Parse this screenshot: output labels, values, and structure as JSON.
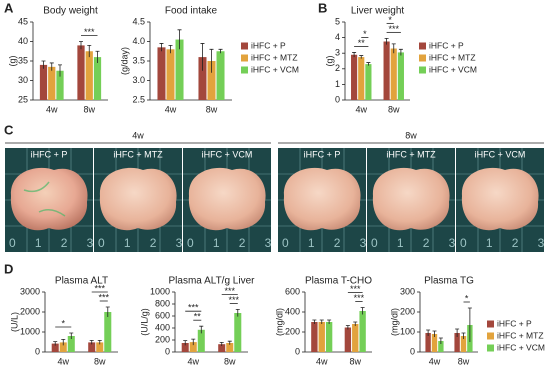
{
  "panel_labels": [
    "A",
    "B",
    "C",
    "D"
  ],
  "photos": {
    "groups": [
      {
        "label": "4w",
        "images": [
          "iHFC + P",
          "iHFC + MTZ",
          "iHFC + VCM"
        ]
      },
      {
        "label": "8w",
        "images": [
          "iHFC + P",
          "iHFC + MTZ",
          "iHFC + VCM"
        ]
      }
    ],
    "scale": [
      "0",
      "1",
      "2",
      "3"
    ]
  },
  "chart_data": [
    {
      "type": "bar",
      "title": "Body weight",
      "y_label": "(g)",
      "categories": [
        "4w",
        "8w"
      ],
      "series": [
        {
          "name": "iHFC + P",
          "color": "#a3473c",
          "values": [
            34,
            39
          ],
          "errors": [
            1,
            1
          ]
        },
        {
          "name": "iHFC + MTZ",
          "color": "#e2a33d",
          "values": [
            33.5,
            37.5
          ],
          "errors": [
            1,
            1.5
          ]
        },
        {
          "name": "iHFC + VCM",
          "color": "#74cf57",
          "values": [
            32.5,
            36
          ],
          "errors": [
            1.5,
            1.5
          ]
        }
      ],
      "ylim": [
        25,
        45
      ],
      "yticks": [
        25,
        30,
        35,
        40,
        45
      ],
      "annotations": [
        {
          "text": "***",
          "category": "8w",
          "between": [
            "iHFC + P",
            "iHFC + VCM"
          ]
        }
      ]
    },
    {
      "type": "bar",
      "title": "Food intake",
      "y_label": "(g/day)",
      "categories": [
        "4w",
        "8w"
      ],
      "series": [
        {
          "name": "iHFC + P",
          "color": "#a3473c",
          "values": [
            3.85,
            3.6
          ],
          "errors": [
            0.1,
            0.35
          ]
        },
        {
          "name": "iHFC + MTZ",
          "color": "#e2a33d",
          "values": [
            3.8,
            3.5
          ],
          "errors": [
            0.1,
            0.3
          ]
        },
        {
          "name": "iHFC + VCM",
          "color": "#74cf57",
          "values": [
            4.05,
            3.75
          ],
          "errors": [
            0.25,
            0.05
          ]
        }
      ],
      "ylim": [
        2.5,
        4.5
      ],
      "yticks": [
        2.5,
        {
          "value": 3,
          "label": "3.0"
        },
        3.5,
        {
          "value": 4,
          "label": "4.0"
        },
        4.5
      ],
      "legend": "outside-right"
    },
    {
      "type": "bar",
      "title": "Liver weight",
      "y_label": "(g)",
      "categories": [
        "4w",
        "8w"
      ],
      "series": [
        {
          "name": "iHFC + P",
          "color": "#a3473c",
          "values": [
            2.9,
            3.75
          ],
          "errors": [
            0.15,
            0.2
          ]
        },
        {
          "name": "iHFC + MTZ",
          "color": "#e2a33d",
          "values": [
            2.75,
            3.3
          ],
          "errors": [
            0.1,
            0.3
          ]
        },
        {
          "name": "iHFC + VCM",
          "color": "#74cf57",
          "values": [
            2.3,
            3.05
          ],
          "errors": [
            0.1,
            0.2
          ]
        }
      ],
      "ylim": [
        0,
        5
      ],
      "yticks": [
        0,
        1,
        2,
        3,
        4,
        5
      ],
      "annotations": [
        {
          "text": "**",
          "category": "4w",
          "between": [
            "iHFC + P",
            "iHFC + VCM"
          ]
        },
        {
          "text": "*",
          "category": "4w",
          "between": [
            "iHFC + MTZ",
            "iHFC + VCM"
          ]
        },
        {
          "text": "***",
          "category": "8w",
          "between": [
            "iHFC + P",
            "iHFC + VCM"
          ]
        },
        {
          "text": "*",
          "category": "8w",
          "between": [
            "iHFC + P",
            "iHFC + MTZ"
          ]
        }
      ],
      "legend": "outside-right"
    },
    {
      "type": "bar",
      "title": "Plasma ALT",
      "y_label": "(U/L)",
      "categories": [
        "4w",
        "8w"
      ],
      "series": [
        {
          "name": "iHFC + P",
          "color": "#a3473c",
          "values": [
            420,
            480
          ],
          "errors": [
            100,
            100
          ]
        },
        {
          "name": "iHFC + MTZ",
          "color": "#e2a33d",
          "values": [
            480,
            480
          ],
          "errors": [
            150,
            100
          ]
        },
        {
          "name": "iHFC + VCM",
          "color": "#74cf57",
          "values": [
            800,
            2000
          ],
          "errors": [
            150,
            250
          ]
        }
      ],
      "ylim": [
        0,
        3000
      ],
      "yticks": [
        0,
        1000,
        2000,
        3000
      ],
      "annotations": [
        {
          "text": "*",
          "category": "4w",
          "between": [
            "iHFC + P",
            "iHFC + VCM"
          ]
        },
        {
          "text": "***",
          "category": "8w",
          "between": [
            "iHFC + MTZ",
            "iHFC + VCM"
          ]
        },
        {
          "text": "***",
          "category": "8w",
          "between": [
            "iHFC + P",
            "iHFC + VCM"
          ]
        }
      ]
    },
    {
      "type": "bar",
      "title": "Plasma ALT/g Liver",
      "y_label": "(U/L/g)",
      "categories": [
        "4w",
        "8w"
      ],
      "series": [
        {
          "name": "iHFC + P",
          "color": "#a3473c",
          "values": [
            150,
            130
          ],
          "errors": [
            40,
            30
          ]
        },
        {
          "name": "iHFC + MTZ",
          "color": "#e2a33d",
          "values": [
            165,
            150
          ],
          "errors": [
            50,
            30
          ]
        },
        {
          "name": "iHFC + VCM",
          "color": "#74cf57",
          "values": [
            370,
            650
          ],
          "errors": [
            60,
            60
          ]
        }
      ],
      "ylim": [
        0,
        1000
      ],
      "yticks": [
        0,
        200,
        400,
        600,
        800,
        1000
      ],
      "annotations": [
        {
          "text": "**",
          "category": "4w",
          "between": [
            "iHFC + MTZ",
            "iHFC + VCM"
          ]
        },
        {
          "text": "***",
          "category": "4w",
          "between": [
            "iHFC + P",
            "iHFC + VCM"
          ]
        },
        {
          "text": "***",
          "category": "8w",
          "between": [
            "iHFC + MTZ",
            "iHFC + VCM"
          ]
        },
        {
          "text": "***",
          "category": "8w",
          "between": [
            "iHFC + P",
            "iHFC + VCM"
          ]
        }
      ]
    },
    {
      "type": "bar",
      "title": "Plasma T-CHO",
      "y_label": "(mg/dl)",
      "categories": [
        "4w",
        "8w"
      ],
      "series": [
        {
          "name": "iHFC + P",
          "color": "#a3473c",
          "values": [
            300,
            245
          ],
          "errors": [
            20,
            20
          ]
        },
        {
          "name": "iHFC + MTZ",
          "color": "#e2a33d",
          "values": [
            300,
            280
          ],
          "errors": [
            20,
            20
          ]
        },
        {
          "name": "iHFC + VCM",
          "color": "#74cf57",
          "values": [
            300,
            410
          ],
          "errors": [
            20,
            35
          ]
        }
      ],
      "ylim": [
        0,
        600
      ],
      "yticks": [
        0,
        200,
        400,
        600
      ],
      "annotations": [
        {
          "text": "***",
          "category": "8w",
          "between": [
            "iHFC + MTZ",
            "iHFC + VCM"
          ]
        },
        {
          "text": "***",
          "category": "8w",
          "between": [
            "iHFC + P",
            "iHFC + VCM"
          ]
        }
      ]
    },
    {
      "type": "bar",
      "title": "Plasma TG",
      "y_label": "(mg/dl)",
      "categories": [
        "4w",
        "8w"
      ],
      "series": [
        {
          "name": "iHFC + P",
          "color": "#a3473c",
          "values": [
            95,
            95
          ],
          "errors": [
            15,
            20
          ]
        },
        {
          "name": "iHFC + MTZ",
          "color": "#e2a33d",
          "values": [
            90,
            80
          ],
          "errors": [
            15,
            15
          ]
        },
        {
          "name": "iHFC + VCM",
          "color": "#74cf57",
          "values": [
            55,
            135
          ],
          "errors": [
            15,
            85
          ]
        }
      ],
      "ylim": [
        0,
        300
      ],
      "yticks": [
        0,
        100,
        200,
        300
      ],
      "annotations": [
        {
          "text": "*",
          "category": "8w",
          "between": [
            "iHFC + MTZ",
            "iHFC + VCM"
          ]
        }
      ],
      "legend": "outside-right"
    }
  ]
}
